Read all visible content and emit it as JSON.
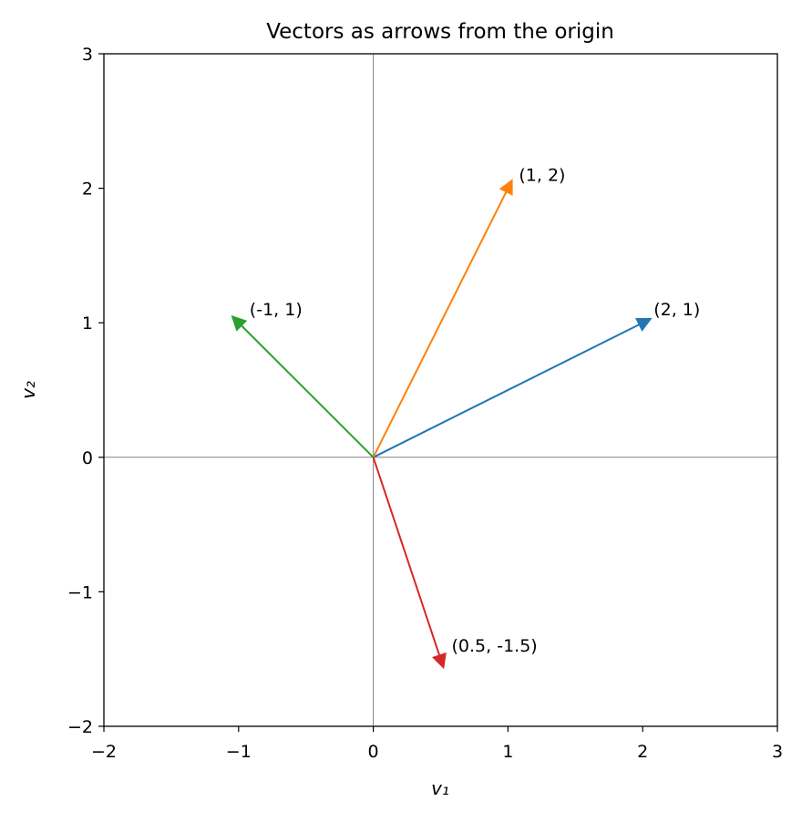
{
  "chart_data": {
    "type": "vector",
    "title": "Vectors as arrows from the origin",
    "xlabel": "v₁",
    "ylabel": "v₂",
    "xlim": [
      -2,
      3
    ],
    "ylim": [
      -2,
      3
    ],
    "xticks": [
      {
        "value": -2,
        "label": "−2"
      },
      {
        "value": -1,
        "label": "−1"
      },
      0,
      1,
      2,
      3
    ],
    "yticks": [
      {
        "value": -2,
        "label": "−2"
      },
      {
        "value": -1,
        "label": "−1"
      },
      0,
      1,
      2,
      3
    ],
    "origin_lines": true,
    "origin_line_color": "#808080",
    "vectors": [
      {
        "label": "(2, 1)",
        "x": 2,
        "y": 1,
        "color": "#1f77b4"
      },
      {
        "label": "(1, 2)",
        "x": 1,
        "y": 2,
        "color": "#ff7f0e"
      },
      {
        "label": "(-1, 1)",
        "x": -1,
        "y": 1,
        "color": "#2ca02c"
      },
      {
        "label": "(0.5, -1.5)",
        "x": 0.5,
        "y": -1.5,
        "color": "#d62728"
      }
    ]
  }
}
